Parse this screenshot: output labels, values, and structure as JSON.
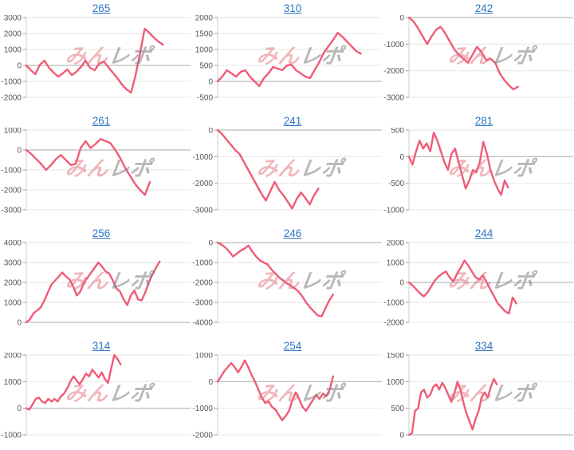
{
  "page": {
    "background": "#ffffff"
  },
  "watermark": {
    "text_left": "みん",
    "text_right": "レポ"
  },
  "style": {
    "line_color": "#ef5c77",
    "grid_color": "#e6e6e6",
    "zero_line_color": "#a8a8a8",
    "axis_color": "#cccccc",
    "tick_color": "#999999",
    "label_color": "#555555",
    "title_link_color": "#2e74c4",
    "watermark_pink": "rgba(226,110,122,0.50)",
    "watermark_gray": "rgba(125,125,125,0.55)"
  },
  "chart_data": [
    {
      "type": "line",
      "title": "265",
      "xlabel": "",
      "ylabel": "",
      "ylim": [
        -2000,
        3000
      ],
      "ytick_step": 1000,
      "grid": true,
      "x_fraction": 0.84,
      "values": [
        0,
        -300,
        -550,
        50,
        300,
        -150,
        -450,
        -700,
        -500,
        -250,
        -600,
        -400,
        -100,
        300,
        -150,
        -300,
        100,
        250,
        -100,
        -450,
        -800,
        -1200,
        -1500,
        -1700,
        -600,
        800,
        2300,
        2050,
        1750,
        1500,
        1300
      ]
    },
    {
      "type": "line",
      "title": "310",
      "xlabel": "",
      "ylabel": "",
      "ylim": [
        -500,
        2000
      ],
      "ytick_step": 500,
      "grid": true,
      "x_fraction": 0.88,
      "values": [
        0,
        150,
        350,
        250,
        150,
        300,
        350,
        150,
        0,
        -150,
        100,
        250,
        450,
        400,
        350,
        500,
        520,
        350,
        250,
        150,
        100,
        350,
        600,
        900,
        1100,
        1300,
        1520,
        1400,
        1250,
        1100,
        950,
        870
      ]
    },
    {
      "type": "line",
      "title": "242",
      "xlabel": "",
      "ylabel": "",
      "ylim": [
        -3000,
        0
      ],
      "ytick_step": 1000,
      "grid": true,
      "x_fraction": 0.67,
      "values": [
        0,
        -150,
        -400,
        -700,
        -1000,
        -700,
        -450,
        -350,
        -600,
        -900,
        -1200,
        -1400,
        -1550,
        -1700,
        -1400,
        -1100,
        -1300,
        -1600,
        -1550,
        -1700,
        -2100,
        -2350,
        -2550,
        -2700,
        -2600
      ]
    },
    {
      "type": "line",
      "title": "261",
      "xlabel": "",
      "ylabel": "",
      "ylim": [
        -3000,
        1000
      ],
      "ytick_step": 1000,
      "grid": true,
      "x_fraction": 0.76,
      "values": [
        0,
        -200,
        -450,
        -700,
        -1000,
        -750,
        -450,
        -250,
        -500,
        -750,
        -700,
        100,
        450,
        100,
        300,
        550,
        450,
        350,
        0,
        -400,
        -900,
        -1300,
        -1700,
        -2000,
        -2250,
        -1600
      ]
    },
    {
      "type": "line",
      "title": "241",
      "xlabel": "",
      "ylabel": "",
      "ylim": [
        -3000,
        0
      ],
      "ytick_step": 1000,
      "grid": true,
      "x_fraction": 0.62,
      "values": [
        0,
        -150,
        -350,
        -550,
        -750,
        -900,
        -1200,
        -1500,
        -1800,
        -2100,
        -2400,
        -2650,
        -2300,
        -1950,
        -2250,
        -2450,
        -2700,
        -2950,
        -2600,
        -2350,
        -2550,
        -2800,
        -2450,
        -2200
      ]
    },
    {
      "type": "line",
      "title": "281",
      "xlabel": "",
      "ylabel": "",
      "ylim": [
        -1000,
        500
      ],
      "ytick_step": 500,
      "grid": true,
      "x_fraction": 0.61,
      "values": [
        0,
        -150,
        100,
        300,
        150,
        250,
        100,
        450,
        300,
        100,
        -100,
        -250,
        50,
        150,
        -100,
        -350,
        -600,
        -450,
        -250,
        -300,
        -100,
        280,
        50,
        -250,
        -450,
        -600,
        -720,
        -450,
        -580
      ]
    },
    {
      "type": "line",
      "title": "256",
      "xlabel": "",
      "ylabel": "",
      "ylim": [
        0,
        4000
      ],
      "ytick_step": 1000,
      "grid": true,
      "x_fraction": 0.82,
      "values": [
        0,
        150,
        450,
        600,
        750,
        1100,
        1500,
        1900,
        2100,
        2300,
        2500,
        2300,
        2150,
        1800,
        1350,
        1550,
        2000,
        2250,
        2500,
        2750,
        3000,
        2800,
        2550,
        2450,
        2100,
        1700,
        1550,
        1150,
        870,
        1350,
        1600,
        1150,
        1100,
        1500,
        2000,
        2400,
        2750,
        3050
      ]
    },
    {
      "type": "line",
      "title": "246",
      "xlabel": "",
      "ylabel": "",
      "ylim": [
        -4000,
        0
      ],
      "ytick_step": 1000,
      "grid": true,
      "x_fraction": 0.71,
      "values": [
        0,
        -100,
        -250,
        -450,
        -700,
        -550,
        -400,
        -300,
        -150,
        -450,
        -700,
        -900,
        -1000,
        -1100,
        -1350,
        -1550,
        -1750,
        -1900,
        -2050,
        -2150,
        -2300,
        -2450,
        -2700,
        -3000,
        -3250,
        -3450,
        -3650,
        -3700,
        -3300,
        -2900,
        -2600
      ]
    },
    {
      "type": "line",
      "title": "244",
      "xlabel": "",
      "ylabel": "",
      "ylim": [
        -2000,
        2000
      ],
      "ytick_step": 1000,
      "grid": true,
      "x_fraction": 0.66,
      "values": [
        0,
        -150,
        -350,
        -550,
        -700,
        -500,
        -200,
        100,
        300,
        450,
        550,
        250,
        50,
        450,
        750,
        1100,
        850,
        550,
        250,
        150,
        350,
        0,
        -350,
        -700,
        -1050,
        -1250,
        -1450,
        -1550,
        -750,
        -1050
      ]
    },
    {
      "type": "line",
      "title": "314",
      "xlabel": "",
      "ylabel": "",
      "ylim": [
        -1000,
        2000
      ],
      "ytick_step": 1000,
      "grid": true,
      "x_fraction": 0.58,
      "values": [
        0,
        -50,
        150,
        350,
        400,
        250,
        200,
        350,
        250,
        350,
        250,
        450,
        550,
        750,
        1000,
        1200,
        1050,
        900,
        1100,
        1300,
        1200,
        1450,
        1300,
        1150,
        1350,
        1100,
        950,
        1500,
        2000,
        1850,
        1650
      ]
    },
    {
      "type": "line",
      "title": "254",
      "xlabel": "",
      "ylabel": "",
      "ylim": [
        -2000,
        1000
      ],
      "ytick_step": 1000,
      "grid": true,
      "x_fraction": 0.71,
      "values": [
        0,
        200,
        400,
        550,
        700,
        550,
        350,
        550,
        800,
        550,
        250,
        0,
        -300,
        -600,
        -800,
        -750,
        -950,
        -1050,
        -1250,
        -1450,
        -1300,
        -1100,
        -700,
        -400,
        -650,
        -950,
        -1100,
        -900,
        -700,
        -500,
        -650,
        -450,
        -550,
        -300,
        200
      ]
    },
    {
      "type": "line",
      "title": "334",
      "xlabel": "",
      "ylabel": "",
      "ylim": [
        0,
        1500
      ],
      "ytick_step": 500,
      "grid": true,
      "x_fraction": 0.54,
      "values": [
        0,
        30,
        450,
        500,
        800,
        850,
        700,
        750,
        900,
        950,
        850,
        980,
        880,
        750,
        620,
        780,
        1000,
        850,
        600,
        400,
        250,
        100,
        300,
        450,
        700,
        800,
        700,
        900,
        1050,
        950
      ]
    }
  ]
}
